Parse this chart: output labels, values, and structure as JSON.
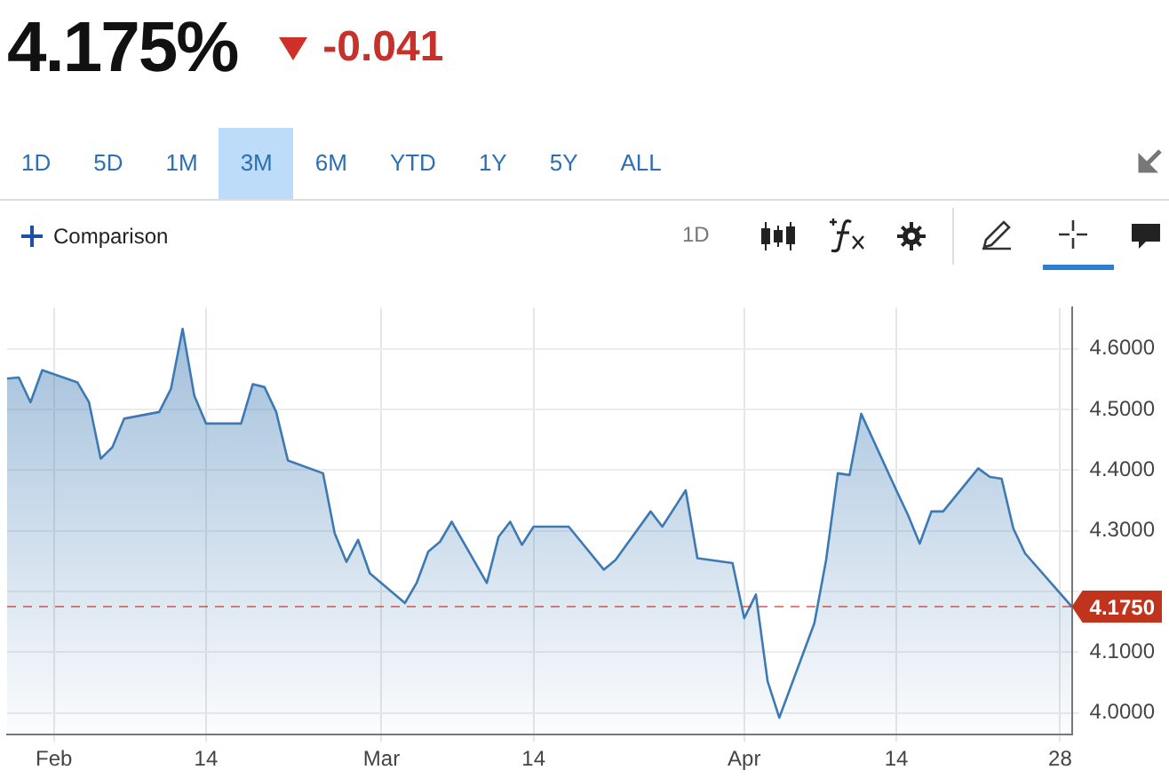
{
  "chart_data": {
    "type": "area",
    "title": "4.175%",
    "subtitle": "-0.041",
    "annotations": [
      "1D",
      "5D",
      "1M",
      "3M",
      "6M",
      "YTD",
      "1Y",
      "5Y",
      "ALL",
      "Comparison",
      "1D"
    ],
    "x": [
      "--01-28",
      "--01-29",
      "--01-30",
      "--01-31",
      "--02-03",
      "--02-04",
      "--02-05",
      "--02-06",
      "--02-07",
      "--02-10",
      "--02-11",
      "--02-12",
      "--02-13",
      "--02-14",
      "--02-17",
      "--02-18",
      "--02-19",
      "--02-20",
      "--02-21",
      "--02-24",
      "--02-25",
      "--02-26",
      "--02-27",
      "--02-28",
      "--03-03",
      "--03-04",
      "--03-05",
      "--03-06",
      "--03-07",
      "--03-10",
      "--03-11",
      "--03-12",
      "--03-13",
      "--03-14",
      "--03-17",
      "--03-20",
      "--03-21",
      "--03-24",
      "--03-25",
      "--03-27",
      "--03-28",
      "--03-31",
      "--04-01",
      "--04-02",
      "--04-03",
      "--04-04",
      "--04-07",
      "--04-08",
      "--04-09",
      "--04-10",
      "--04-11",
      "--04-14",
      "--04-15",
      "--04-16",
      "--04-17",
      "--04-18",
      "--04-21",
      "--04-22",
      "--04-23",
      "--04-24",
      "--04-25",
      "--04-29"
    ],
    "series": [
      {
        "color": "#3d7ab3",
        "values": [
          4.551,
          4.553,
          4.512,
          4.565,
          4.545,
          4.512,
          4.419,
          4.438,
          4.485,
          4.496,
          4.534,
          4.633,
          4.523,
          4.477,
          4.477,
          4.542,
          4.537,
          4.496,
          4.416,
          4.395,
          4.296,
          4.249,
          4.285,
          4.23,
          4.181,
          4.214,
          4.266,
          4.282,
          4.315,
          4.214,
          4.29,
          4.315,
          4.277,
          4.307,
          4.307,
          4.236,
          4.252,
          4.332,
          4.307,
          4.367,
          4.255,
          4.247,
          4.156,
          4.195,
          4.052,
          3.992,
          4.148,
          4.252,
          4.395,
          4.392,
          4.493,
          4.367,
          4.326,
          4.279,
          4.332,
          4.332,
          4.403,
          4.389,
          4.386,
          4.304,
          4.263,
          4.175
        ]
      }
    ],
    "xlim": [
      "--01-28",
      "--04-29"
    ],
    "xticks": [
      {
        "value": "--02-01",
        "label": "Feb"
      },
      {
        "value": "--02-14",
        "label": "14"
      },
      {
        "value": "--03-01",
        "label": "Mar"
      },
      {
        "value": "--03-14",
        "label": "14"
      },
      {
        "value": "--04-01",
        "label": "Apr"
      },
      {
        "value": "--04-14",
        "label": "14"
      },
      {
        "value": "--04-28",
        "label": "28"
      }
    ],
    "ylim": [
      3.964,
      4.668
    ],
    "yticks": [
      {
        "value": 4.0,
        "label": "4.0000"
      },
      {
        "value": 4.1,
        "label": "4.1000"
      },
      {
        "value": 4.2,
        "label": null
      },
      {
        "value": 4.3,
        "label": "4.3000"
      },
      {
        "value": 4.4,
        "label": "4.4000"
      },
      {
        "value": 4.5,
        "label": "4.5000"
      },
      {
        "value": 4.6,
        "label": "4.6000"
      }
    ],
    "ref_lines": [
      {
        "axis": "y",
        "value": 4.175,
        "label": "4.1750",
        "color": "#c0341d",
        "line_style": "dashed"
      }
    ],
    "grid": true,
    "legend": false
  }
}
